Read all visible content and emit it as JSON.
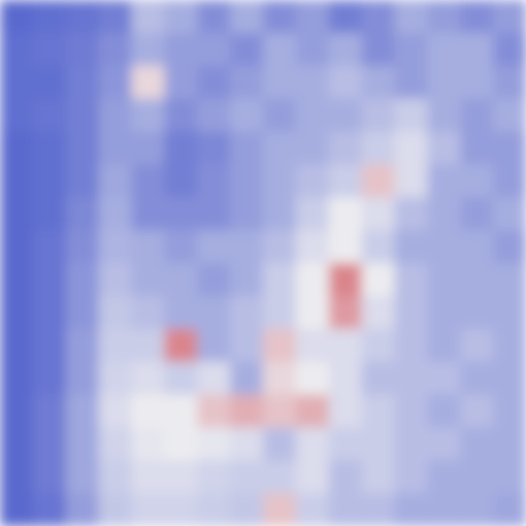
{
  "chart_data": {
    "type": "heatmap",
    "tick_labels": false,
    "zlim": [
      0,
      1
    ],
    "cells": [
      [
        0.08,
        0.1,
        0.12,
        0.15,
        0.35,
        0.3,
        0.2,
        0.3,
        0.2,
        0.25,
        0.15,
        0.2,
        0.3,
        0.25,
        0.2,
        0.25
      ],
      [
        0.1,
        0.12,
        0.14,
        0.2,
        0.3,
        0.25,
        0.25,
        0.2,
        0.3,
        0.25,
        0.3,
        0.2,
        0.25,
        0.3,
        0.3,
        0.2
      ],
      [
        0.1,
        0.1,
        0.15,
        0.22,
        0.55,
        0.25,
        0.2,
        0.25,
        0.3,
        0.3,
        0.35,
        0.3,
        0.25,
        0.3,
        0.3,
        0.25
      ],
      [
        0.1,
        0.12,
        0.15,
        0.25,
        0.3,
        0.2,
        0.25,
        0.3,
        0.25,
        0.3,
        0.3,
        0.35,
        0.4,
        0.3,
        0.25,
        0.3
      ],
      [
        0.08,
        0.1,
        0.15,
        0.25,
        0.25,
        0.15,
        0.18,
        0.25,
        0.3,
        0.3,
        0.35,
        0.4,
        0.45,
        0.35,
        0.25,
        0.25
      ],
      [
        0.08,
        0.1,
        0.15,
        0.28,
        0.2,
        0.15,
        0.2,
        0.25,
        0.3,
        0.35,
        0.4,
        0.6,
        0.45,
        0.3,
        0.3,
        0.25
      ],
      [
        0.08,
        0.1,
        0.18,
        0.3,
        0.2,
        0.2,
        0.2,
        0.25,
        0.3,
        0.4,
        0.5,
        0.45,
        0.35,
        0.3,
        0.25,
        0.3
      ],
      [
        0.08,
        0.12,
        0.2,
        0.32,
        0.3,
        0.25,
        0.3,
        0.3,
        0.35,
        0.45,
        0.5,
        0.4,
        0.3,
        0.3,
        0.3,
        0.25
      ],
      [
        0.08,
        0.12,
        0.22,
        0.35,
        0.3,
        0.3,
        0.25,
        0.3,
        0.4,
        0.5,
        0.75,
        0.5,
        0.35,
        0.3,
        0.3,
        0.3
      ],
      [
        0.08,
        0.12,
        0.22,
        0.38,
        0.35,
        0.3,
        0.3,
        0.35,
        0.4,
        0.5,
        0.7,
        0.45,
        0.35,
        0.3,
        0.3,
        0.3
      ],
      [
        0.08,
        0.12,
        0.25,
        0.4,
        0.4,
        0.75,
        0.3,
        0.35,
        0.6,
        0.45,
        0.45,
        0.4,
        0.35,
        0.3,
        0.35,
        0.3
      ],
      [
        0.08,
        0.12,
        0.25,
        0.42,
        0.45,
        0.4,
        0.45,
        0.3,
        0.55,
        0.5,
        0.45,
        0.35,
        0.35,
        0.35,
        0.3,
        0.3
      ],
      [
        0.08,
        0.14,
        0.28,
        0.45,
        0.5,
        0.5,
        0.6,
        0.65,
        0.6,
        0.65,
        0.45,
        0.4,
        0.35,
        0.3,
        0.35,
        0.3
      ],
      [
        0.08,
        0.14,
        0.28,
        0.42,
        0.48,
        0.5,
        0.48,
        0.45,
        0.35,
        0.45,
        0.4,
        0.4,
        0.35,
        0.35,
        0.3,
        0.3
      ],
      [
        0.08,
        0.14,
        0.28,
        0.4,
        0.45,
        0.45,
        0.42,
        0.4,
        0.4,
        0.45,
        0.35,
        0.4,
        0.35,
        0.3,
        0.3,
        0.3
      ],
      [
        0.08,
        0.12,
        0.25,
        0.38,
        0.42,
        0.42,
        0.4,
        0.38,
        0.6,
        0.4,
        0.35,
        0.35,
        0.3,
        0.3,
        0.3,
        0.28
      ]
    ]
  }
}
